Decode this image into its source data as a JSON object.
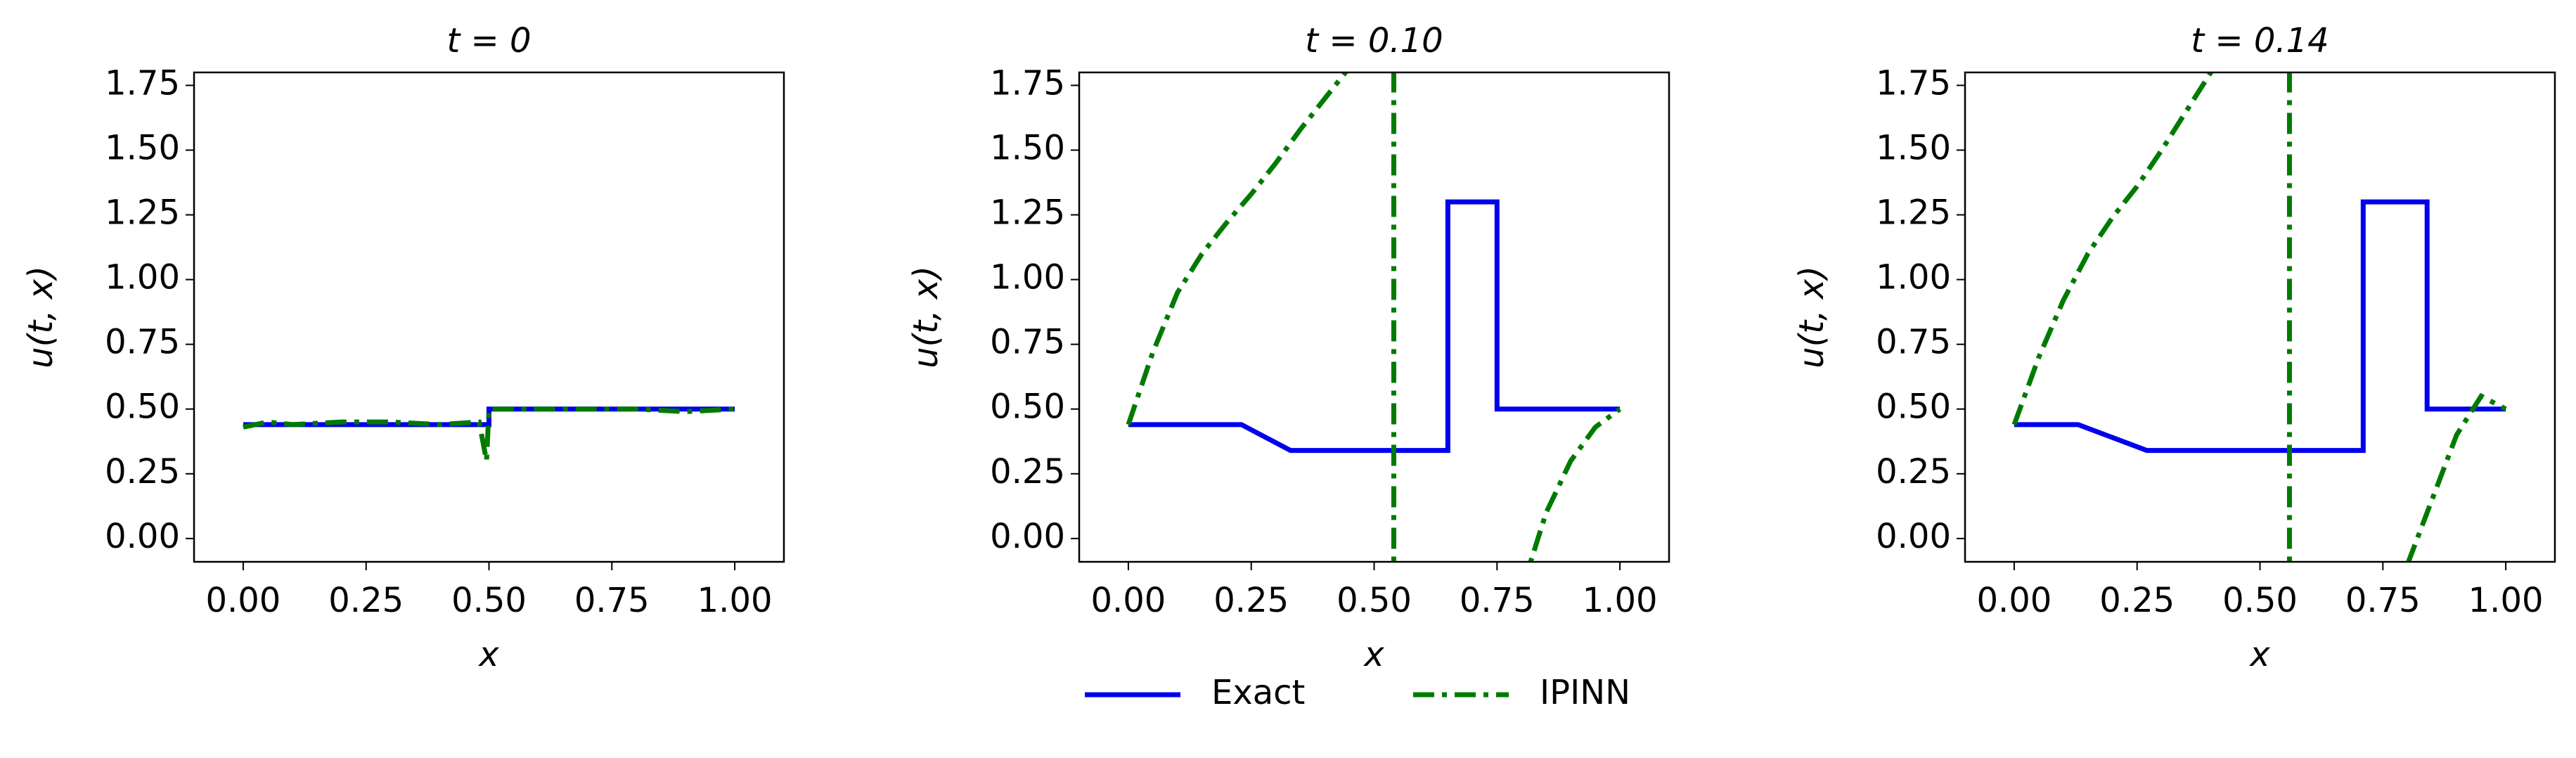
{
  "chart_data": [
    {
      "type": "line",
      "title": "t = 0",
      "xlabel": "x",
      "ylabel": "u(t, x)",
      "xlim": [
        -0.1,
        1.1
      ],
      "ylim": [
        -0.09,
        1.8
      ],
      "xticks": [
        {
          "value": 0,
          "label": "0.00"
        },
        {
          "value": 0.25,
          "label": "0.25"
        },
        {
          "value": 0.5,
          "label": "0.50"
        },
        {
          "value": 0.75,
          "label": "0.75"
        },
        {
          "value": 1,
          "label": "1.00"
        }
      ],
      "yticks": [
        {
          "value": 0,
          "label": "0.00"
        },
        {
          "value": 0.25,
          "label": "0.25"
        },
        {
          "value": 0.5,
          "label": "0.50"
        },
        {
          "value": 0.75,
          "label": "0.75"
        },
        {
          "value": 1,
          "label": "1.00"
        },
        {
          "value": 1.25,
          "label": "1.25"
        },
        {
          "value": 1.5,
          "label": "1.50"
        },
        {
          "value": 1.75,
          "label": "1.75"
        }
      ],
      "series": [
        {
          "name": "Exact",
          "color": "#0000ee",
          "style": "solid",
          "x": [
            0,
            0.5,
            0.5,
            1
          ],
          "values": [
            0.44,
            0.44,
            0.5,
            0.5
          ]
        },
        {
          "name": "IPINN",
          "color": "#007a00",
          "style": "dashdot",
          "x": [
            0,
            0.05,
            0.1,
            0.2,
            0.3,
            0.4,
            0.48,
            0.495,
            0.5,
            0.505,
            0.6,
            0.7,
            0.8,
            0.9,
            1
          ],
          "values": [
            0.43,
            0.45,
            0.44,
            0.45,
            0.45,
            0.44,
            0.45,
            0.3,
            0.5,
            0.5,
            0.5,
            0.5,
            0.5,
            0.49,
            0.5
          ]
        }
      ]
    },
    {
      "type": "line",
      "title": "t = 0.10",
      "xlabel": "x",
      "ylabel": "u(t, x)",
      "xlim": [
        -0.1,
        1.1
      ],
      "ylim": [
        -0.09,
        1.8
      ],
      "xticks": [
        {
          "value": 0,
          "label": "0.00"
        },
        {
          "value": 0.25,
          "label": "0.25"
        },
        {
          "value": 0.5,
          "label": "0.50"
        },
        {
          "value": 0.75,
          "label": "0.75"
        },
        {
          "value": 1,
          "label": "1.00"
        }
      ],
      "yticks": [
        {
          "value": 0,
          "label": "0.00"
        },
        {
          "value": 0.25,
          "label": "0.25"
        },
        {
          "value": 0.5,
          "label": "0.50"
        },
        {
          "value": 0.75,
          "label": "0.75"
        },
        {
          "value": 1,
          "label": "1.00"
        },
        {
          "value": 1.25,
          "label": "1.25"
        },
        {
          "value": 1.5,
          "label": "1.50"
        },
        {
          "value": 1.75,
          "label": "1.75"
        }
      ],
      "series": [
        {
          "name": "Exact",
          "color": "#0000ee",
          "style": "solid",
          "x": [
            0,
            0.23,
            0.33,
            0.65,
            0.65,
            0.75,
            0.75,
            1
          ],
          "values": [
            0.44,
            0.44,
            0.34,
            0.34,
            1.3,
            1.3,
            0.5,
            0.5
          ]
        },
        {
          "name": "IPINN",
          "color": "#007a00",
          "style": "dashdot",
          "x": [
            0,
            0.05,
            0.1,
            0.15,
            0.2,
            0.25,
            0.3,
            0.35,
            0.4,
            0.45,
            0.5,
            0.54,
            0.54,
            0.6,
            0.8,
            0.85,
            0.9,
            0.95,
            1
          ],
          "values": [
            0.44,
            0.72,
            0.95,
            1.1,
            1.22,
            1.33,
            1.45,
            1.58,
            1.7,
            1.82,
            null,
            -0.2,
            2.0,
            null,
            -0.2,
            0.1,
            0.3,
            0.43,
            0.5
          ]
        }
      ]
    },
    {
      "type": "line",
      "title": "t = 0.14",
      "xlabel": "x",
      "ylabel": "u(t, x)",
      "xlim": [
        -0.1,
        1.1
      ],
      "ylim": [
        -0.09,
        1.8
      ],
      "xticks": [
        {
          "value": 0,
          "label": "0.00"
        },
        {
          "value": 0.25,
          "label": "0.25"
        },
        {
          "value": 0.5,
          "label": "0.50"
        },
        {
          "value": 0.75,
          "label": "0.75"
        },
        {
          "value": 1,
          "label": "1.00"
        }
      ],
      "yticks": [
        {
          "value": 0,
          "label": "0.00"
        },
        {
          "value": 0.25,
          "label": "0.25"
        },
        {
          "value": 0.5,
          "label": "0.50"
        },
        {
          "value": 0.75,
          "label": "0.75"
        },
        {
          "value": 1,
          "label": "1.00"
        },
        {
          "value": 1.25,
          "label": "1.25"
        },
        {
          "value": 1.5,
          "label": "1.50"
        },
        {
          "value": 1.75,
          "label": "1.75"
        }
      ],
      "series": [
        {
          "name": "Exact",
          "color": "#0000ee",
          "style": "solid",
          "x": [
            0,
            0.13,
            0.27,
            0.71,
            0.71,
            0.84,
            0.84,
            1
          ],
          "values": [
            0.44,
            0.44,
            0.34,
            0.34,
            1.3,
            1.3,
            0.5,
            0.5
          ]
        },
        {
          "name": "IPINN",
          "color": "#007a00",
          "style": "dashdot",
          "x": [
            0,
            0.05,
            0.1,
            0.15,
            0.2,
            0.25,
            0.3,
            0.35,
            0.4,
            0.42,
            0.5,
            0.56,
            0.56,
            0.7,
            0.8,
            0.85,
            0.9,
            0.95,
            1
          ],
          "values": [
            0.44,
            0.7,
            0.92,
            1.1,
            1.24,
            1.36,
            1.5,
            1.65,
            1.8,
            1.86,
            null,
            -0.2,
            2.0,
            null,
            -0.1,
            0.15,
            0.4,
            0.55,
            0.5
          ]
        }
      ]
    }
  ]
}
